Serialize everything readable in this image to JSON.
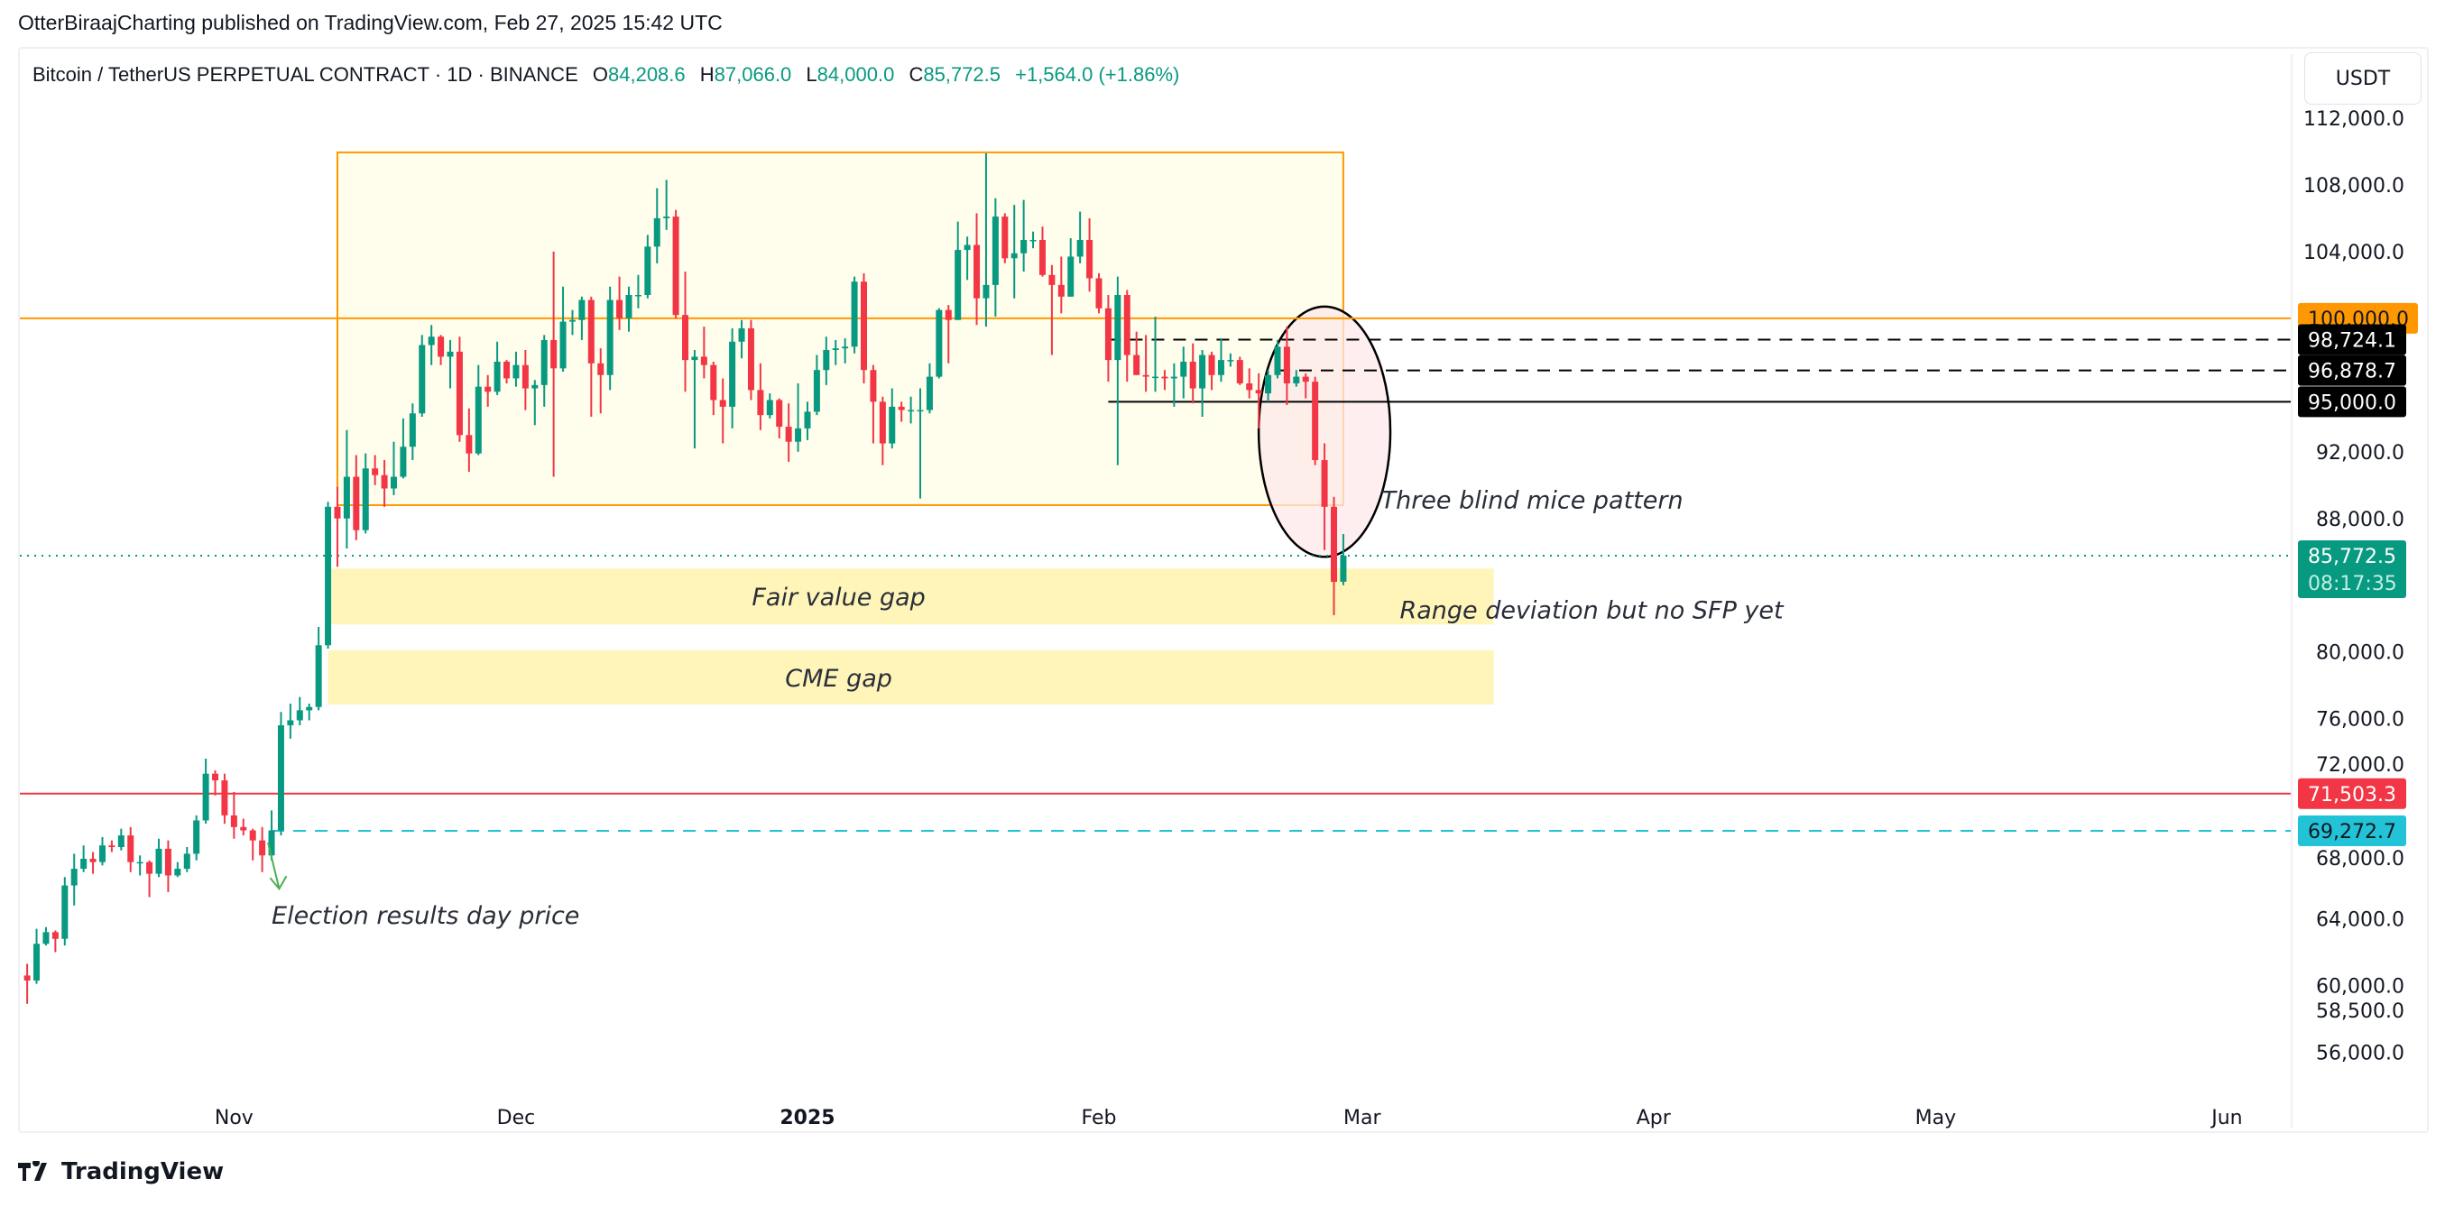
{
  "byline": "OtterBiraajCharting published on TradingView.com, Feb 27, 2025 15:42 UTC",
  "legend": {
    "symbol": "Bitcoin / TetherUS PERPETUAL CONTRACT · 1D · BINANCE",
    "o_label": "O",
    "o": "84,208.6",
    "h_label": "H",
    "h": "87,066.0",
    "l_label": "L",
    "l": "84,000.0",
    "c_label": "C",
    "c": "85,772.5",
    "change": "+1,564.0 (+1.86%)"
  },
  "currency": "USDT",
  "brand": "TradingView",
  "colors": {
    "up": "#089981",
    "down": "#f23645",
    "range_box": "#ff9800",
    "gap_fill": "#fff5b8",
    "ellipse_fill": "#fde8ea"
  },
  "chart_data": {
    "type": "candlestick",
    "ylim": [
      54000,
      113500
    ],
    "xlim": [
      "2024-10-09",
      "2025-06-15"
    ],
    "grid": false,
    "x_ticks": [
      {
        "date": "2024-11-01",
        "label": "Nov"
      },
      {
        "date": "2024-12-01",
        "label": "Dec"
      },
      {
        "date": "2025-01-01",
        "label": "2025",
        "bold": true
      },
      {
        "date": "2025-02-01",
        "label": "Feb"
      },
      {
        "date": "2025-03-01",
        "label": "Mar"
      },
      {
        "date": "2025-04-01",
        "label": "Apr"
      },
      {
        "date": "2025-05-01",
        "label": "May"
      },
      {
        "date": "2025-06-01",
        "label": "Jun"
      }
    ],
    "y_ticks": [
      {
        "value": 112000,
        "label": "112,000.0"
      },
      {
        "value": 108000,
        "label": "108,000.0"
      },
      {
        "value": 104000,
        "label": "104,000.0"
      },
      {
        "value": 92000,
        "label": "92,000.0"
      },
      {
        "value": 88000,
        "label": "88,000.0"
      },
      {
        "value": 80000,
        "label": "80,000.0"
      },
      {
        "value": 76000,
        "label": "76,000.0"
      },
      {
        "value": 72000,
        "label": "72,000.0"
      },
      {
        "value": 68000,
        "label": "68,000.0"
      },
      {
        "value": 64000,
        "label": "64,000.0"
      },
      {
        "value": 60000,
        "label": "60,000.0"
      },
      {
        "value": 58500,
        "label": "58,500.0"
      },
      {
        "value": 56000,
        "label": "56,000.0"
      }
    ],
    "price_badges": [
      {
        "value": 100000,
        "label": "100,000.0",
        "bg": "#ff9800",
        "fg": "#131722"
      },
      {
        "value": 98724.1,
        "label": "98,724.1",
        "bg": "#000000",
        "fg": "#ffffff"
      },
      {
        "value": 96878.7,
        "label": "96,878.7",
        "bg": "#000000",
        "fg": "#ffffff"
      },
      {
        "value": 95000,
        "label": "95,000.0",
        "bg": "#000000",
        "fg": "#ffffff"
      },
      {
        "value": 71503.3,
        "label": "71,503.3",
        "bg": "#f23645",
        "fg": "#ffffff"
      },
      {
        "value": 69272.7,
        "label": "69,272.7",
        "bg": "#22c3d6",
        "fg": "#131722"
      }
    ],
    "last_price": {
      "value": 85772.5,
      "label": "85,772.5",
      "countdown": "08:17:35",
      "bg": "#089981"
    },
    "hlines": [
      {
        "value": 100000,
        "color": "#ff9800",
        "style": "solid",
        "from": null
      },
      {
        "value": 98724.1,
        "color": "#000000",
        "style": "dashed",
        "from": "2025-02-02"
      },
      {
        "value": 96878.7,
        "color": "#000000",
        "style": "dashed",
        "from": "2025-02-20"
      },
      {
        "value": 95000,
        "color": "#000000",
        "style": "solid",
        "from": "2025-02-02"
      },
      {
        "value": 71503.3,
        "color": "#f23645",
        "style": "solid",
        "from": null
      },
      {
        "value": 69272.7,
        "color": "#22c3d6",
        "style": "dashed",
        "from": "2024-11-05"
      },
      {
        "value": 85772.5,
        "color": "#089981",
        "style": "dotted",
        "from": null
      }
    ],
    "drawings": {
      "range_box": {
        "from": "2024-11-12",
        "to": "2025-02-27",
        "top": 109950,
        "bottom": 88800
      },
      "fair_value_gap": {
        "from": "2024-11-11",
        "to": "2025-03-15",
        "top": 85000,
        "bottom": 81650,
        "label": "Fair value gap"
      },
      "cme_gap": {
        "from": "2024-11-11",
        "to": "2025-03-15",
        "top": 80100,
        "bottom": 76850,
        "label": "CME gap"
      },
      "ellipse": {
        "center_date": "2025-02-25",
        "center_price": 93200,
        "half_width_days": 7,
        "half_height_price": 7500
      },
      "notes": [
        {
          "text": "Three blind mice pattern",
          "date": "2025-03-03",
          "price": 88600
        },
        {
          "text": "Range deviation but no SFP yet",
          "date": "2025-03-05",
          "price": 82000
        },
        {
          "text": "Election results day price",
          "date": "2024-11-05",
          "price": 63700
        }
      ],
      "arrow": {
        "from_date": "2024-11-05",
        "from_price": 69000,
        "to_date": "2024-11-06",
        "to_price": 65800,
        "color": "#4caf50"
      }
    },
    "candles": [
      [
        "2024-10-10",
        60600,
        61300,
        58900,
        60300
      ],
      [
        "2024-10-11",
        60300,
        63400,
        60100,
        62500
      ],
      [
        "2024-10-12",
        62500,
        63500,
        62400,
        63200
      ],
      [
        "2024-10-13",
        63200,
        63300,
        62000,
        62800
      ],
      [
        "2024-10-14",
        62800,
        66500,
        62400,
        66000
      ],
      [
        "2024-10-15",
        66000,
        67900,
        64800,
        67000
      ],
      [
        "2024-10-16",
        67000,
        68400,
        66800,
        67600
      ],
      [
        "2024-10-17",
        67600,
        68000,
        66700,
        67400
      ],
      [
        "2024-10-18",
        67400,
        68900,
        67200,
        68400
      ],
      [
        "2024-10-19",
        68400,
        68700,
        68000,
        68300
      ],
      [
        "2024-10-20",
        68300,
        69400,
        68100,
        69000
      ],
      [
        "2024-10-21",
        69000,
        69500,
        66800,
        67400
      ],
      [
        "2024-10-22",
        67400,
        67800,
        66600,
        67400
      ],
      [
        "2024-10-23",
        67400,
        67500,
        65300,
        66700
      ],
      [
        "2024-10-24",
        66700,
        68800,
        66500,
        68200
      ],
      [
        "2024-10-25",
        68200,
        68700,
        65600,
        66600
      ],
      [
        "2024-10-26",
        66600,
        67400,
        66500,
        67000
      ],
      [
        "2024-10-27",
        67000,
        68300,
        66800,
        67900
      ],
      [
        "2024-10-28",
        67900,
        70200,
        67500,
        69900
      ],
      [
        "2024-10-29",
        69900,
        73600,
        69700,
        72700
      ],
      [
        "2024-10-30",
        72700,
        72900,
        71400,
        72300
      ],
      [
        "2024-10-31",
        72300,
        72700,
        69700,
        70200
      ],
      [
        "2024-11-01",
        70200,
        71600,
        68800,
        69500
      ],
      [
        "2024-11-02",
        69500,
        70000,
        69000,
        69300
      ],
      [
        "2024-11-03",
        69300,
        69400,
        67500,
        68700
      ],
      [
        "2024-11-04",
        68700,
        69500,
        66800,
        67800
      ],
      [
        "2024-11-05",
        67800,
        70500,
        67500,
        69300
      ],
      [
        "2024-11-06",
        69300,
        76400,
        69000,
        75600
      ],
      [
        "2024-11-07",
        75600,
        76900,
        74800,
        75900
      ],
      [
        "2024-11-08",
        75900,
        77300,
        75600,
        76500
      ],
      [
        "2024-11-09",
        76500,
        76900,
        75900,
        76700
      ],
      [
        "2024-11-10",
        76700,
        81500,
        76500,
        80400
      ],
      [
        "2024-11-11",
        80400,
        89000,
        80200,
        88700
      ],
      [
        "2024-11-12",
        88700,
        89900,
        85100,
        88000
      ],
      [
        "2024-11-13",
        88000,
        93300,
        86200,
        90500
      ],
      [
        "2024-11-14",
        90500,
        91800,
        86700,
        87300
      ],
      [
        "2024-11-15",
        87300,
        91900,
        87100,
        91000
      ],
      [
        "2024-11-16",
        91000,
        91800,
        90000,
        90600
      ],
      [
        "2024-11-17",
        90600,
        91500,
        88700,
        89800
      ],
      [
        "2024-11-18",
        89800,
        92600,
        89400,
        90500
      ],
      [
        "2024-11-19",
        90500,
        94000,
        90400,
        92300
      ],
      [
        "2024-11-20",
        92300,
        94900,
        91500,
        94300
      ],
      [
        "2024-11-21",
        94300,
        99000,
        94100,
        98400
      ],
      [
        "2024-11-22",
        98400,
        99600,
        97200,
        98900
      ],
      [
        "2024-11-23",
        98900,
        99000,
        97200,
        97700
      ],
      [
        "2024-11-24",
        97700,
        98700,
        95800,
        98000
      ],
      [
        "2024-11-25",
        98000,
        98900,
        92600,
        93000
      ],
      [
        "2024-11-26",
        93000,
        94600,
        90800,
        91900
      ],
      [
        "2024-11-27",
        91900,
        97200,
        91800,
        95900
      ],
      [
        "2024-11-28",
        95900,
        96600,
        94700,
        95600
      ],
      [
        "2024-11-29",
        95600,
        98600,
        95400,
        97400
      ],
      [
        "2024-11-30",
        97400,
        97500,
        96100,
        96400
      ],
      [
        "2024-12-01",
        96400,
        98000,
        95900,
        97200
      ],
      [
        "2024-12-02",
        97200,
        98100,
        94500,
        95800
      ],
      [
        "2024-12-03",
        95800,
        96300,
        93600,
        96000
      ],
      [
        "2024-12-04",
        96000,
        99000,
        94700,
        98700
      ],
      [
        "2024-12-05",
        98700,
        104000,
        90500,
        97000
      ],
      [
        "2024-12-06",
        97000,
        101900,
        96800,
        99800
      ],
      [
        "2024-12-07",
        99800,
        100500,
        99000,
        99900
      ],
      [
        "2024-12-08",
        99900,
        101300,
        98700,
        101100
      ],
      [
        "2024-12-09",
        101100,
        101300,
        94100,
        97300
      ],
      [
        "2024-12-10",
        97300,
        98200,
        94300,
        96600
      ],
      [
        "2024-12-11",
        96600,
        101900,
        95700,
        101100
      ],
      [
        "2024-12-12",
        101100,
        102500,
        99300,
        100000
      ],
      [
        "2024-12-13",
        100000,
        101900,
        99200,
        101400
      ],
      [
        "2024-12-14",
        101400,
        102600,
        100600,
        101400
      ],
      [
        "2024-12-15",
        101400,
        105000,
        101200,
        104300
      ],
      [
        "2024-12-16",
        104300,
        107800,
        103300,
        106000
      ],
      [
        "2024-12-17",
        106000,
        108300,
        105300,
        106100
      ],
      [
        "2024-12-18",
        106100,
        106500,
        100000,
        100200
      ],
      [
        "2024-12-19",
        100200,
        102800,
        95600,
        97500
      ],
      [
        "2024-12-20",
        97500,
        98100,
        92200,
        97700
      ],
      [
        "2024-12-21",
        97700,
        99500,
        96400,
        97200
      ],
      [
        "2024-12-22",
        97200,
        97400,
        94200,
        95100
      ],
      [
        "2024-12-23",
        95100,
        96400,
        92500,
        94700
      ],
      [
        "2024-12-24",
        94700,
        99400,
        93400,
        98600
      ],
      [
        "2024-12-25",
        98600,
        99900,
        97600,
        99400
      ],
      [
        "2024-12-26",
        99400,
        99900,
        95100,
        95700
      ],
      [
        "2024-12-27",
        95700,
        97300,
        93300,
        94200
      ],
      [
        "2024-12-28",
        94200,
        95500,
        94000,
        95100
      ],
      [
        "2024-12-29",
        95100,
        95200,
        92800,
        93500
      ],
      [
        "2024-12-30",
        93500,
        94900,
        91400,
        92600
      ],
      [
        "2024-12-31",
        92600,
        96100,
        92000,
        93400
      ],
      [
        "2025-01-01",
        93400,
        95000,
        92700,
        94400
      ],
      [
        "2025-01-02",
        94400,
        97800,
        94200,
        96900
      ],
      [
        "2025-01-03",
        96900,
        98900,
        96000,
        98100
      ],
      [
        "2025-01-04",
        98100,
        98700,
        97200,
        98200
      ],
      [
        "2025-01-05",
        98200,
        98800,
        97300,
        98300
      ],
      [
        "2025-01-06",
        98300,
        102500,
        97900,
        102200
      ],
      [
        "2025-01-07",
        102200,
        102700,
        96100,
        96900
      ],
      [
        "2025-01-08",
        96900,
        97200,
        92500,
        95000
      ],
      [
        "2025-01-09",
        95000,
        95300,
        91200,
        92500
      ],
      [
        "2025-01-10",
        92500,
        95800,
        92200,
        94700
      ],
      [
        "2025-01-11",
        94700,
        95000,
        93800,
        94500
      ],
      [
        "2025-01-12",
        94500,
        95300,
        93700,
        94500
      ],
      [
        "2025-01-13",
        94500,
        95800,
        89200,
        94500
      ],
      [
        "2025-01-14",
        94500,
        97300,
        94300,
        96500
      ],
      [
        "2025-01-15",
        96500,
        100600,
        96400,
        100500
      ],
      [
        "2025-01-16",
        100500,
        100800,
        97300,
        99900
      ],
      [
        "2025-01-17",
        99900,
        105800,
        99900,
        104100
      ],
      [
        "2025-01-18",
        104100,
        104900,
        102300,
        104400
      ],
      [
        "2025-01-19",
        104400,
        106300,
        99600,
        101200
      ],
      [
        "2025-01-20",
        101200,
        109900,
        99500,
        102000
      ],
      [
        "2025-01-21",
        102000,
        107200,
        100100,
        106100
      ],
      [
        "2025-01-22",
        106100,
        106300,
        103300,
        103600
      ],
      [
        "2025-01-23",
        103600,
        106800,
        101200,
        103900
      ],
      [
        "2025-01-24",
        103900,
        107100,
        102800,
        104700
      ],
      [
        "2025-01-25",
        104700,
        105200,
        104200,
        104700
      ],
      [
        "2025-01-26",
        104700,
        105500,
        102500,
        102600
      ],
      [
        "2025-01-27",
        102600,
        103200,
        97800,
        102000
      ],
      [
        "2025-01-28",
        102000,
        103700,
        100300,
        101300
      ],
      [
        "2025-01-29",
        101300,
        104800,
        101300,
        103700
      ],
      [
        "2025-01-30",
        103700,
        106400,
        103300,
        104700
      ],
      [
        "2025-01-31",
        104700,
        106000,
        101600,
        102400
      ],
      [
        "2025-02-01",
        102400,
        102700,
        100300,
        100600
      ],
      [
        "2025-02-02",
        100600,
        101400,
        96200,
        97500
      ],
      [
        "2025-02-03",
        97500,
        102500,
        91200,
        101400
      ],
      [
        "2025-02-04",
        101400,
        101700,
        96200,
        97800
      ],
      [
        "2025-02-05",
        97800,
        99200,
        96600,
        96600
      ],
      [
        "2025-02-06",
        96600,
        99000,
        95600,
        96500
      ],
      [
        "2025-02-07",
        96500,
        100100,
        95600,
        96500
      ],
      [
        "2025-02-08",
        96500,
        96900,
        95700,
        96400
      ],
      [
        "2025-02-09",
        96400,
        97300,
        94700,
        96500
      ],
      [
        "2025-02-10",
        96500,
        98300,
        95200,
        97400
      ],
      [
        "2025-02-11",
        97400,
        98500,
        94900,
        95800
      ],
      [
        "2025-02-12",
        95800,
        98100,
        94100,
        97800
      ],
      [
        "2025-02-13",
        97800,
        98000,
        95700,
        96600
      ],
      [
        "2025-02-14",
        96600,
        98800,
        96200,
        97500
      ],
      [
        "2025-02-15",
        97500,
        97900,
        97100,
        97500
      ],
      [
        "2025-02-16",
        97500,
        97700,
        96000,
        96100
      ],
      [
        "2025-02-17",
        96100,
        97000,
        95200,
        95700
      ],
      [
        "2025-02-18",
        95700,
        96700,
        93400,
        95500
      ],
      [
        "2025-02-19",
        95500,
        96900,
        95000,
        96600
      ],
      [
        "2025-02-20",
        96600,
        98700,
        96400,
        98300
      ],
      [
        "2025-02-21",
        98300,
        99500,
        94800,
        96100
      ],
      [
        "2025-02-22",
        96100,
        96900,
        95900,
        96500
      ],
      [
        "2025-02-23",
        96500,
        96700,
        95200,
        96200
      ],
      [
        "2025-02-24",
        96200,
        96500,
        91200,
        91500
      ],
      [
        "2025-02-25",
        91500,
        92500,
        86100,
        88700
      ],
      [
        "2025-02-26",
        88700,
        89300,
        82200,
        84200
      ],
      [
        "2025-02-27",
        84208.6,
        87066,
        84000,
        85772.5
      ]
    ]
  }
}
